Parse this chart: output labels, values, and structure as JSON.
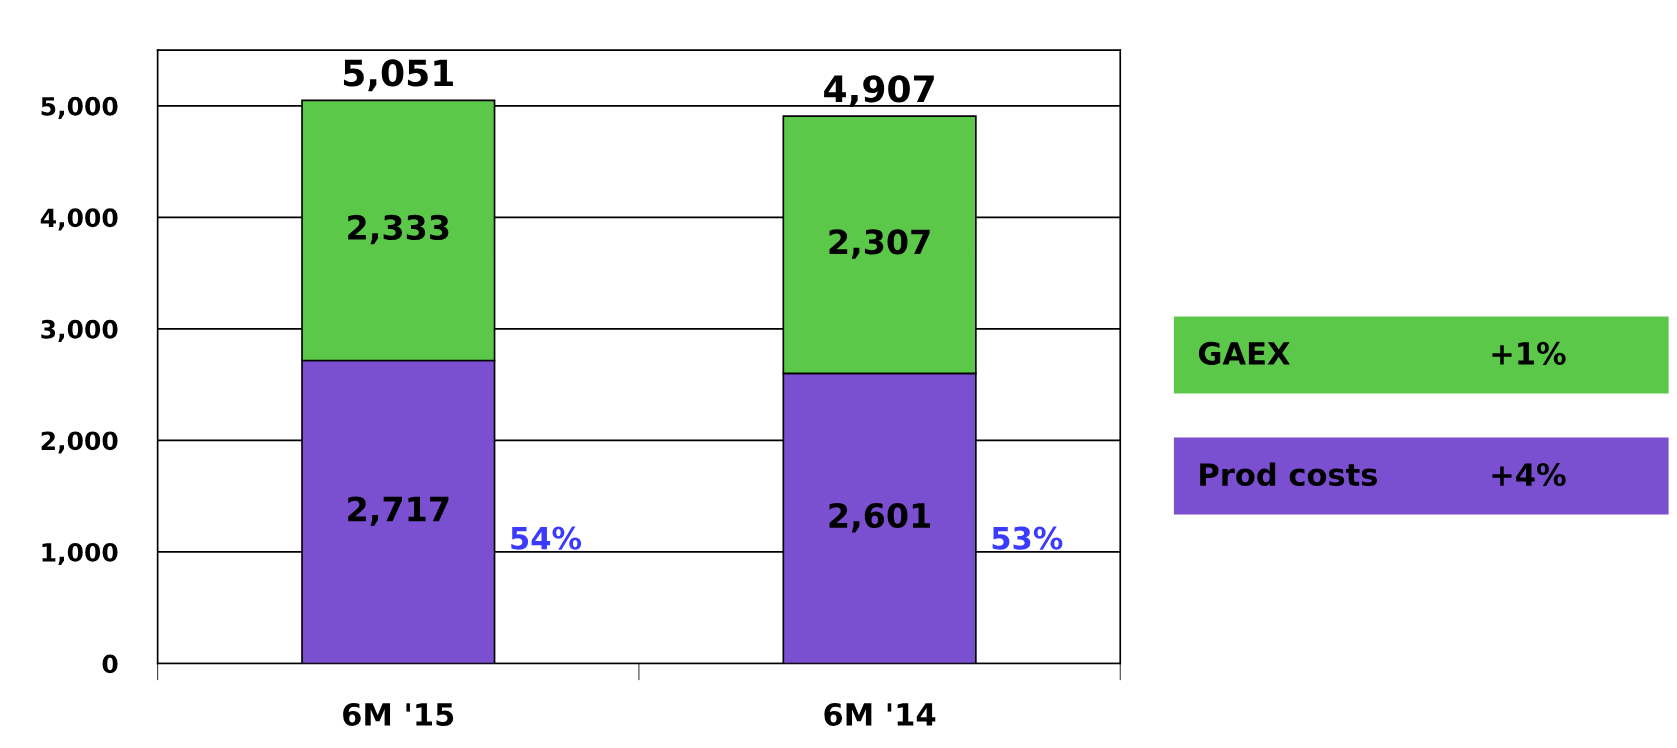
{
  "chart_data": {
    "type": "bar",
    "stacked": true,
    "categories": [
      "6M '15",
      "6M '14"
    ],
    "series": [
      {
        "name": "Prod costs",
        "color": "#7a4fd0",
        "values": [
          2717,
          2601
        ],
        "value_labels": [
          "2,717",
          "2,601"
        ]
      },
      {
        "name": "GAEX",
        "color": "#5cc84a",
        "values": [
          2333,
          2307
        ],
        "value_labels": [
          "2,333",
          "2,307"
        ]
      }
    ],
    "totals": [
      "5,051",
      "4,907"
    ],
    "ylim": [
      0,
      5500
    ],
    "yticks": [
      {
        "value": 0,
        "label": "0"
      },
      {
        "value": 1000,
        "label": "1,000"
      },
      {
        "value": 2000,
        "label": "2,000"
      },
      {
        "value": 3000,
        "label": "3,000"
      },
      {
        "value": 4000,
        "label": "4,000"
      },
      {
        "value": 5000,
        "label": "5,000"
      }
    ],
    "grid": "y",
    "legend": "right",
    "annotations": [
      "54%",
      "53%",
      "+1%",
      "+4%"
    ]
  }
}
